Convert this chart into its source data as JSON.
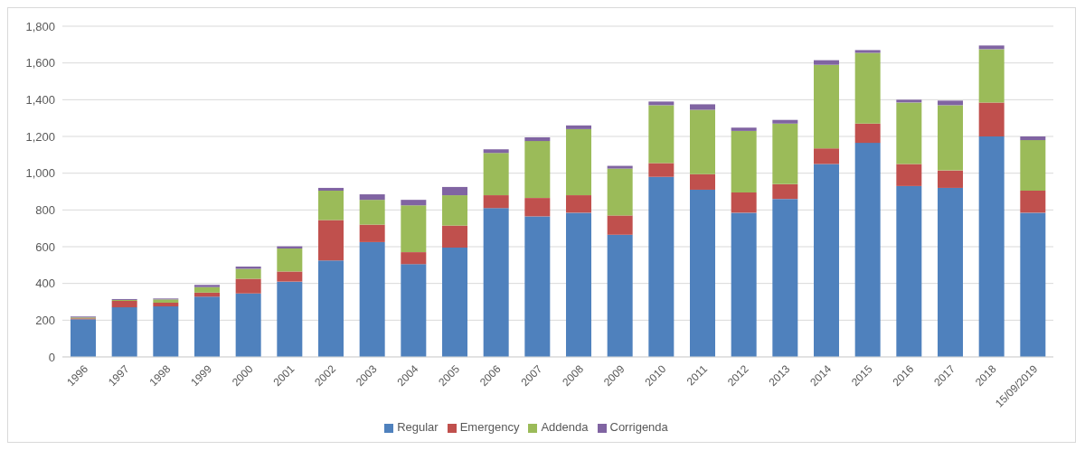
{
  "chart_data": {
    "type": "bar",
    "stacked": true,
    "categories": [
      "1996",
      "1997",
      "1998",
      "1999",
      "2000",
      "2001",
      "2002",
      "2003",
      "2004",
      "2005",
      "2006",
      "2007",
      "2008",
      "2009",
      "2010",
      "2011",
      "2012",
      "2013",
      "2014",
      "2015",
      "2016",
      "2017",
      "2018",
      "15/09/2019"
    ],
    "series": [
      {
        "name": "Regular",
        "color": "#4f81bd",
        "values": [
          205,
          270,
          275,
          328,
          345,
          410,
          525,
          625,
          505,
          595,
          810,
          765,
          785,
          665,
          980,
          910,
          785,
          860,
          1050,
          1165,
          930,
          920,
          1200,
          785
        ]
      },
      {
        "name": "Emergency",
        "color": "#c0504d",
        "values": [
          5,
          35,
          20,
          22,
          80,
          55,
          220,
          95,
          65,
          120,
          70,
          100,
          95,
          105,
          75,
          85,
          110,
          80,
          85,
          105,
          120,
          95,
          185,
          120
        ]
      },
      {
        "name": "Addenda",
        "color": "#9bbb59",
        "values": [
          5,
          5,
          18,
          30,
          55,
          125,
          160,
          135,
          255,
          165,
          230,
          310,
          360,
          255,
          315,
          350,
          335,
          330,
          455,
          385,
          335,
          355,
          290,
          275
        ]
      },
      {
        "name": "Corrigenda",
        "color": "#8064a2",
        "values": [
          5,
          5,
          5,
          12,
          12,
          12,
          15,
          30,
          30,
          45,
          20,
          20,
          20,
          15,
          20,
          30,
          18,
          20,
          25,
          15,
          15,
          25,
          20,
          20
        ]
      }
    ],
    "ylim": [
      0,
      1800
    ],
    "yticks": [
      0,
      200,
      400,
      600,
      800,
      {
        "value": 1000,
        "label": "1,000"
      },
      {
        "value": 1200,
        "label": "1,200"
      },
      {
        "value": 1400,
        "label": "1,400"
      },
      {
        "value": 1600,
        "label": "1,600"
      },
      {
        "value": 1800,
        "label": "1,800"
      }
    ],
    "grid": "y",
    "legend": "bottom"
  }
}
